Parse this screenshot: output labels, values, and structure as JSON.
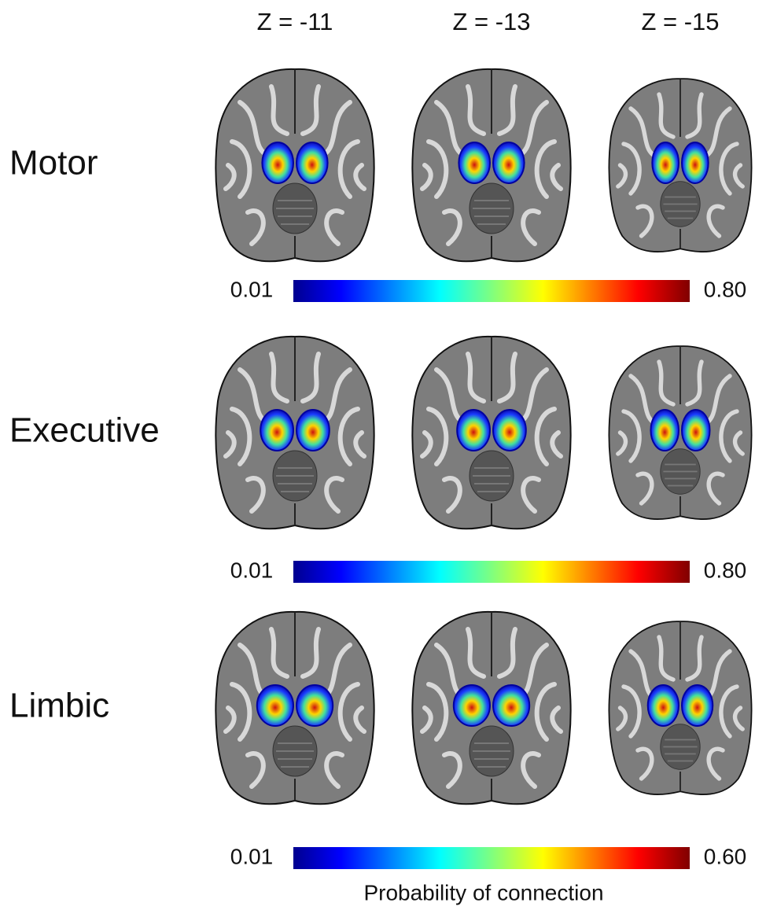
{
  "columns": [
    "Z = -11",
    "Z = -13",
    "Z = -15"
  ],
  "rows": [
    {
      "label": "Motor",
      "colorbar": {
        "min": "0.01",
        "max": "0.80"
      }
    },
    {
      "label": "Executive",
      "colorbar": {
        "min": "0.01",
        "max": "0.80"
      }
    },
    {
      "label": "Limbic",
      "colorbar": {
        "min": "0.01",
        "max": "0.60"
      }
    }
  ],
  "caption": "Probability of connection"
}
